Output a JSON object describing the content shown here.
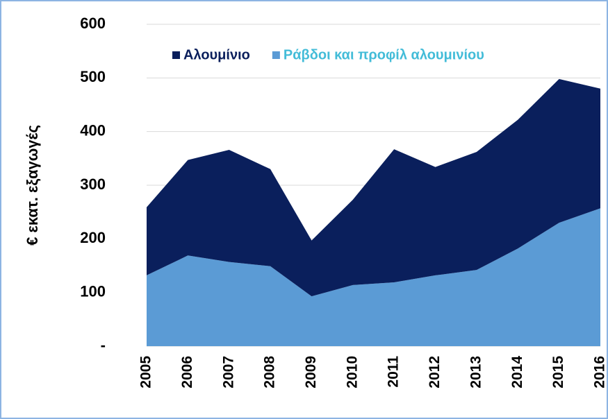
{
  "chart_data": {
    "type": "stacked-area",
    "y_label": "€ εκατ. εξαγωγές",
    "categories": [
      "2005",
      "2006",
      "2007",
      "2008",
      "2009",
      "2010",
      "2011",
      "2012",
      "2013",
      "2014",
      "2015",
      "2016"
    ],
    "series": [
      {
        "name": "Αλουμίνιο",
        "color": "#0a1f5c",
        "values": [
          127,
          178,
          209,
          181,
          104,
          159,
          248,
          202,
          220,
          240,
          268,
          223
        ]
      },
      {
        "name": "Ράβδοι και προφίλ αλουμινίου",
        "color": "#5b9bd5",
        "values": [
          132,
          169,
          157,
          149,
          93,
          114,
          119,
          132,
          142,
          182,
          230,
          257
        ]
      }
    ],
    "ylim": [
      0,
      600
    ],
    "yticks": [
      {
        "value": 0,
        "label": "-"
      },
      100,
      200,
      300,
      400,
      500,
      600
    ],
    "grid": true
  }
}
